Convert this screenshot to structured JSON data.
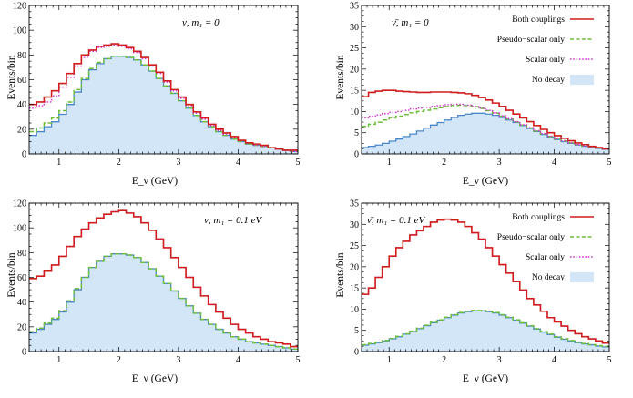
{
  "colors": {
    "both": "#d01c1c",
    "pseudo": "#6fbf3c",
    "scalar": "#cc33cc",
    "nodecay_fill": "#d2e6f8",
    "nodecay_line": "#4a86c7"
  },
  "chart_data": [
    {
      "type": "step",
      "title": "ν, m₁ = 0",
      "xlabel": "E_ν (GeV)",
      "ylabel": "Events/bin",
      "xlim": [
        0.5,
        5
      ],
      "ylim": [
        0,
        120
      ],
      "xticks": [
        "1",
        "2",
        "3",
        "4",
        "5"
      ],
      "yticks": [
        "0",
        "20",
        "40",
        "60",
        "80",
        "100",
        "120"
      ],
      "bin_edges": [
        0.5,
        0.625,
        0.75,
        0.875,
        1.0,
        1.125,
        1.25,
        1.375,
        1.5,
        1.625,
        1.75,
        1.875,
        2.0,
        2.125,
        2.25,
        2.375,
        2.5,
        2.625,
        2.75,
        2.875,
        3.0,
        3.125,
        3.25,
        3.375,
        3.5,
        3.625,
        3.75,
        3.875,
        4.0,
        4.125,
        4.25,
        4.375,
        4.5,
        4.625,
        4.75,
        4.875,
        5.0
      ],
      "series": [
        {
          "name": "No decay",
          "style": "fill",
          "values": [
            15,
            18,
            22,
            26,
            32,
            40,
            50,
            60,
            68,
            73,
            77,
            79,
            79,
            78,
            76,
            72,
            67,
            61,
            55,
            49,
            43,
            37,
            31,
            26,
            22,
            18,
            15,
            12,
            10,
            8,
            7,
            6,
            5,
            4,
            3,
            2
          ]
        },
        {
          "name": "Pseudo-scalar only",
          "style": "dashed",
          "values": [
            18,
            21,
            25,
            29,
            35,
            42,
            52,
            61,
            69,
            74,
            77,
            79,
            79,
            78,
            76,
            72,
            67,
            61,
            55,
            49,
            43,
            37,
            31,
            26,
            22,
            18,
            15,
            12,
            10,
            8,
            7,
            6,
            5,
            4,
            3,
            2
          ]
        },
        {
          "name": "Scalar only",
          "style": "dotted",
          "values": [
            37,
            39,
            42,
            47,
            54,
            62,
            71,
            78,
            83,
            86,
            87,
            88,
            87,
            85,
            82,
            77,
            71,
            65,
            58,
            51,
            45,
            39,
            33,
            28,
            23,
            19,
            16,
            13,
            11,
            9,
            7,
            6,
            5,
            4,
            3,
            2
          ]
        },
        {
          "name": "Both couplings",
          "style": "solid",
          "values": [
            40,
            42,
            46,
            51,
            57,
            65,
            73,
            80,
            84,
            87,
            88,
            89,
            88,
            86,
            83,
            78,
            72,
            66,
            59,
            52,
            46,
            40,
            34,
            29,
            24,
            20,
            17,
            14,
            11,
            9,
            8,
            7,
            5,
            4,
            3,
            3
          ]
        }
      ]
    },
    {
      "type": "step",
      "title": "ν̄, m₁ = 0",
      "xlabel": "E_ν (GeV)",
      "ylabel": "Events/bin",
      "xlim": [
        0.5,
        5
      ],
      "ylim": [
        0,
        35
      ],
      "xticks": [
        "1",
        "2",
        "3",
        "4",
        "5"
      ],
      "yticks": [
        "0",
        "5",
        "10",
        "15",
        "20",
        "25",
        "30",
        "35"
      ],
      "legend": [
        "Both couplings",
        "Pseudo−scalar only",
        "Scalar only",
        "No decay"
      ],
      "bin_edges": [
        0.5,
        0.625,
        0.75,
        0.875,
        1.0,
        1.125,
        1.25,
        1.375,
        1.5,
        1.625,
        1.75,
        1.875,
        2.0,
        2.125,
        2.25,
        2.375,
        2.5,
        2.625,
        2.75,
        2.875,
        3.0,
        3.125,
        3.25,
        3.375,
        3.5,
        3.625,
        3.75,
        3.875,
        4.0,
        4.125,
        4.25,
        4.375,
        4.5,
        4.625,
        4.75,
        4.875,
        5.0
      ],
      "series": [
        {
          "name": "No decay",
          "style": "fill",
          "values": [
            1.5,
            1.8,
            2.1,
            2.5,
            3.0,
            3.5,
            4.1,
            4.7,
            5.4,
            6.1,
            6.8,
            7.4,
            8.0,
            8.6,
            9.1,
            9.4,
            9.6,
            9.6,
            9.4,
            9.1,
            8.6,
            8.0,
            7.4,
            6.7,
            6.0,
            5.3,
            4.6,
            4.0,
            3.4,
            2.9,
            2.5,
            2.1,
            1.8,
            1.6,
            1.3,
            1.1
          ]
        },
        {
          "name": "Pseudo-scalar only",
          "style": "dashed",
          "values": [
            6.5,
            7.0,
            7.5,
            8.0,
            8.5,
            8.9,
            9.3,
            9.7,
            10.0,
            10.3,
            10.6,
            10.9,
            11.2,
            11.4,
            11.5,
            11.4,
            11.1,
            10.7,
            10.2,
            9.6,
            8.9,
            8.2,
            7.5,
            6.8,
            6.1,
            5.4,
            4.7,
            4.1,
            3.5,
            3.0,
            2.6,
            2.2,
            1.9,
            1.6,
            1.4,
            1.2
          ]
        },
        {
          "name": "Scalar only",
          "style": "dotted",
          "values": [
            8.5,
            8.9,
            9.2,
            9.5,
            9.8,
            10.0,
            10.3,
            10.6,
            10.8,
            11.0,
            11.2,
            11.4,
            11.6,
            11.7,
            11.7,
            11.5,
            11.2,
            10.8,
            10.3,
            9.7,
            9.0,
            8.3,
            7.6,
            6.9,
            6.2,
            5.5,
            4.8,
            4.2,
            3.6,
            3.1,
            2.6,
            2.2,
            1.9,
            1.6,
            1.4,
            1.2
          ]
        },
        {
          "name": "Both couplings",
          "style": "solid",
          "values": [
            13.5,
            14.5,
            14.8,
            15.0,
            15.0,
            14.8,
            14.7,
            14.6,
            14.5,
            14.5,
            14.6,
            14.6,
            14.6,
            14.5,
            14.4,
            14.2,
            13.8,
            13.3,
            12.7,
            12.0,
            11.2,
            10.3,
            9.4,
            8.5,
            7.6,
            6.7,
            5.8,
            5.0,
            4.3,
            3.7,
            3.1,
            2.6,
            2.2,
            1.8,
            1.5,
            1.2
          ]
        }
      ]
    },
    {
      "type": "step",
      "title": "ν, m₁ = 0.1 eV",
      "xlabel": "E_ν (GeV)",
      "ylabel": "Events/bin",
      "xlim": [
        0.5,
        5
      ],
      "ylim": [
        0,
        120
      ],
      "xticks": [
        "1",
        "2",
        "3",
        "4",
        "5"
      ],
      "yticks": [
        "0",
        "20",
        "40",
        "60",
        "80",
        "100",
        "120"
      ],
      "bin_edges": [
        0.5,
        0.625,
        0.75,
        0.875,
        1.0,
        1.125,
        1.25,
        1.375,
        1.5,
        1.625,
        1.75,
        1.875,
        2.0,
        2.125,
        2.25,
        2.375,
        2.5,
        2.625,
        2.75,
        2.875,
        3.0,
        3.125,
        3.25,
        3.375,
        3.5,
        3.625,
        3.75,
        3.875,
        4.0,
        4.125,
        4.25,
        4.375,
        4.5,
        4.625,
        4.75,
        4.875,
        5.0
      ],
      "series": [
        {
          "name": "No decay",
          "style": "fill",
          "values": [
            15,
            18,
            22,
            26,
            32,
            40,
            50,
            60,
            68,
            73,
            77,
            79,
            79,
            78,
            76,
            72,
            67,
            61,
            55,
            49,
            43,
            37,
            31,
            26,
            22,
            18,
            15,
            12,
            10,
            8,
            7,
            6,
            5,
            4,
            3,
            2
          ]
        },
        {
          "name": "Pseudo-scalar only",
          "style": "dashed",
          "values": [
            16,
            19,
            23,
            27,
            33,
            41,
            51,
            60,
            68,
            73,
            77,
            79,
            79,
            78,
            76,
            72,
            67,
            61,
            55,
            49,
            43,
            37,
            31,
            26,
            22,
            18,
            15,
            12,
            10,
            8,
            7,
            6,
            5,
            4,
            3,
            2
          ]
        },
        {
          "name": "Scalar only",
          "style": "dotted",
          "values": [
            59,
            61,
            65,
            70,
            77,
            85,
            93,
            99,
            104,
            108,
            111,
            113,
            114,
            112,
            109,
            104,
            98,
            91,
            84,
            76,
            68,
            60,
            52,
            45,
            38,
            32,
            27,
            22,
            18,
            15,
            12,
            10,
            8,
            7,
            6,
            4
          ]
        },
        {
          "name": "Both couplings",
          "style": "solid",
          "values": [
            59,
            61,
            65,
            70,
            77,
            85,
            93,
            99,
            104,
            108,
            111,
            113,
            114,
            112,
            109,
            104,
            98,
            91,
            84,
            76,
            68,
            60,
            52,
            45,
            38,
            32,
            27,
            22,
            18,
            15,
            12,
            10,
            8,
            7,
            6,
            4
          ]
        }
      ]
    },
    {
      "type": "step",
      "title": "ν̄, m₁ = 0.1 eV",
      "xlabel": "E_ν (GeV)",
      "ylabel": "Events/bin",
      "xlim": [
        0.5,
        5
      ],
      "ylim": [
        0,
        35
      ],
      "xticks": [
        "1",
        "2",
        "3",
        "4",
        "5"
      ],
      "yticks": [
        "0",
        "5",
        "10",
        "15",
        "20",
        "25",
        "30",
        "35"
      ],
      "legend": [
        "Both couplings",
        "Pseudo−scalar only",
        "Scalar only",
        "No decay"
      ],
      "bin_edges": [
        0.5,
        0.625,
        0.75,
        0.875,
        1.0,
        1.125,
        1.25,
        1.375,
        1.5,
        1.625,
        1.75,
        1.875,
        2.0,
        2.125,
        2.25,
        2.375,
        2.5,
        2.625,
        2.75,
        2.875,
        3.0,
        3.125,
        3.25,
        3.375,
        3.5,
        3.625,
        3.75,
        3.875,
        4.0,
        4.125,
        4.25,
        4.375,
        4.5,
        4.625,
        4.75,
        4.875,
        5.0
      ],
      "series": [
        {
          "name": "No decay",
          "style": "fill",
          "values": [
            1.5,
            1.8,
            2.1,
            2.5,
            3.0,
            3.5,
            4.1,
            4.7,
            5.4,
            6.1,
            6.8,
            7.4,
            8.0,
            8.6,
            9.1,
            9.4,
            9.6,
            9.6,
            9.4,
            9.1,
            8.6,
            8.0,
            7.4,
            6.7,
            6.0,
            5.3,
            4.6,
            4.0,
            3.4,
            2.9,
            2.5,
            2.1,
            1.8,
            1.6,
            1.3,
            1.1
          ]
        },
        {
          "name": "Pseudo-scalar only",
          "style": "dashed",
          "values": [
            1.6,
            1.9,
            2.2,
            2.6,
            3.1,
            3.6,
            4.2,
            4.8,
            5.5,
            6.2,
            6.9,
            7.5,
            8.1,
            8.7,
            9.2,
            9.5,
            9.7,
            9.7,
            9.5,
            9.2,
            8.7,
            8.1,
            7.5,
            6.8,
            6.1,
            5.4,
            4.7,
            4.1,
            3.5,
            3.0,
            2.6,
            2.2,
            1.9,
            1.6,
            1.4,
            1.2
          ]
        },
        {
          "name": "Scalar only",
          "style": "dotted",
          "values": [
            13.5,
            15,
            17.5,
            20,
            22.5,
            24.5,
            26,
            27.5,
            28.5,
            29.5,
            30.5,
            31,
            31.2,
            31,
            30.5,
            29.5,
            28,
            26.5,
            24.5,
            22.5,
            20.5,
            18.5,
            16.5,
            14.5,
            12.5,
            11,
            9.5,
            8,
            7,
            6,
            5,
            4.2,
            3.5,
            3,
            2.5,
            2
          ]
        },
        {
          "name": "Both couplings",
          "style": "solid",
          "values": [
            13.5,
            15,
            17.5,
            20,
            22.5,
            24.5,
            26,
            27.5,
            28.5,
            29.5,
            30.5,
            31,
            31.2,
            31,
            30.5,
            29.5,
            28,
            26.5,
            24.5,
            22.5,
            20.5,
            18.5,
            16.5,
            14.5,
            12.5,
            11,
            9.5,
            8,
            7,
            6,
            5,
            4.2,
            3.5,
            3,
            2.5,
            2
          ]
        }
      ]
    }
  ]
}
